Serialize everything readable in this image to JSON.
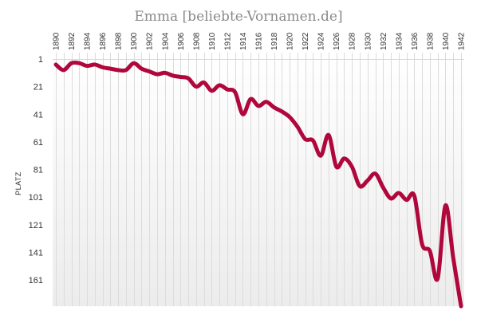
{
  "chart_data": {
    "type": "line",
    "title": "Emma  [beliebte-Vornamen.de]",
    "ylabel": "PLATZ",
    "xlabel": "",
    "y_inverted": true,
    "ylim": [
      1,
      180
    ],
    "xlim": [
      1890,
      1942
    ],
    "x_ticks": [
      "1890",
      "1892",
      "1894",
      "1896",
      "1898",
      "1900",
      "1902",
      "1904",
      "1906",
      "1908",
      "1910",
      "1912",
      "1914",
      "1916",
      "1918",
      "1920",
      "1922",
      "1924",
      "1926",
      "1928",
      "1930",
      "1932",
      "1934",
      "1936",
      "1938",
      "1940",
      "1942"
    ],
    "y_ticks": [
      1,
      21,
      41,
      61,
      81,
      101,
      121,
      141,
      161
    ],
    "grid": "vertical",
    "line_color": "#b0073d",
    "series": [
      {
        "name": "",
        "x": [
          1890,
          1891,
          1892,
          1893,
          1894,
          1895,
          1896,
          1897,
          1898,
          1899,
          1900,
          1901,
          1902,
          1903,
          1904,
          1905,
          1906,
          1907,
          1908,
          1909,
          1910,
          1911,
          1912,
          1913,
          1914,
          1915,
          1916,
          1917,
          1918,
          1919,
          1920,
          1921,
          1922,
          1923,
          1924,
          1925,
          1926,
          1927,
          1928,
          1929,
          1930,
          1931,
          1932,
          1933,
          1934,
          1935,
          1936,
          1937,
          1938,
          1939,
          1940,
          1941,
          1942
        ],
        "values": [
          5,
          9,
          4,
          4,
          6,
          5,
          7,
          8,
          9,
          9,
          4,
          8,
          10,
          12,
          11,
          13,
          14,
          15,
          21,
          18,
          24,
          20,
          23,
          25,
          41,
          30,
          35,
          32,
          36,
          39,
          43,
          50,
          59,
          60,
          71,
          56,
          79,
          73,
          79,
          93,
          89,
          84,
          94,
          102,
          98,
          103,
          100,
          135,
          140,
          160,
          107,
          145,
          180
        ]
      }
    ]
  }
}
